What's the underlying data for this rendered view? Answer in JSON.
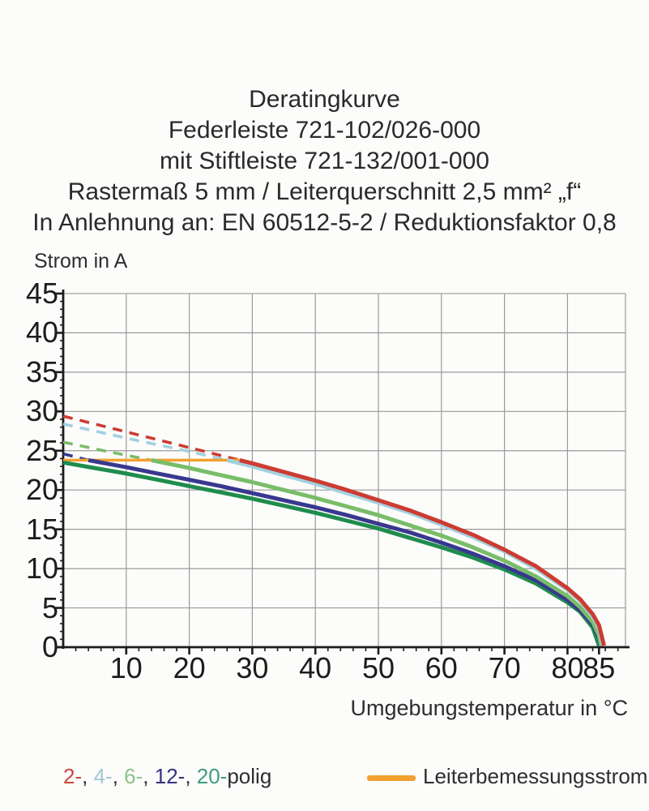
{
  "title": {
    "lines": [
      "Deratingkurve",
      "Federleiste 721-102/026-000",
      "mit Stiftleiste 721-132/001-000",
      "Rastermaß 5 mm / Leiterquerschnitt 2,5 mm² „f“",
      "In Anlehnung an: EN 60512-5-2 / Reduktionsfaktor 0,8"
    ]
  },
  "chart_data": {
    "type": "line",
    "title": "Deratingkurve",
    "xlabel": "Umgebungstemperatur in °C",
    "ylabel": "Strom in A",
    "xlim": [
      0,
      89.2
    ],
    "ylim": [
      0,
      45
    ],
    "grid": true,
    "x_major_ticks": [
      10,
      20,
      30,
      40,
      50,
      60,
      70,
      80,
      85
    ],
    "x_minor_tick_step": 2,
    "x_minor_tick_max": 88,
    "y_major_ticks": [
      0,
      5,
      10,
      15,
      20,
      25,
      30,
      35,
      40,
      45
    ],
    "y_minor_tick_step": 1,
    "x_gridline_step": 10,
    "y_gridline_step": 5,
    "rated_current_line": {
      "name": "Leiterbemessungsstrom",
      "color": "#f2a12f",
      "y": 23.8,
      "x_start": 0,
      "x_end": 28
    },
    "series": [
      {
        "name": "20-polig",
        "color": "#1f8c4d",
        "dashed_points": [],
        "solid_points": [
          [
            0,
            23.5
          ],
          [
            5,
            22.8
          ],
          [
            10,
            22.1
          ],
          [
            15,
            21.3
          ],
          [
            20,
            20.5
          ],
          [
            25,
            19.7
          ],
          [
            30,
            18.9
          ],
          [
            35,
            18.0
          ],
          [
            40,
            17.1
          ],
          [
            45,
            16.1
          ],
          [
            50,
            15.1
          ],
          [
            55,
            13.9
          ],
          [
            60,
            12.7
          ],
          [
            65,
            11.4
          ],
          [
            70,
            9.9
          ],
          [
            75,
            8.1
          ],
          [
            80,
            5.7
          ],
          [
            82,
            4.5
          ],
          [
            84,
            2.5
          ],
          [
            85,
            0.2
          ]
        ]
      },
      {
        "name": "12-polig",
        "color": "#39388f",
        "dashed_points": [
          [
            0,
            24.6
          ],
          [
            4,
            23.8
          ]
        ],
        "solid_points": [
          [
            4,
            23.8
          ],
          [
            10,
            22.9
          ],
          [
            15,
            22.1
          ],
          [
            20,
            21.3
          ],
          [
            25,
            20.5
          ],
          [
            30,
            19.6
          ],
          [
            35,
            18.7
          ],
          [
            40,
            17.8
          ],
          [
            45,
            16.8
          ],
          [
            50,
            15.7
          ],
          [
            55,
            14.6
          ],
          [
            60,
            13.3
          ],
          [
            65,
            11.9
          ],
          [
            70,
            10.3
          ],
          [
            75,
            8.5
          ],
          [
            80,
            6.0
          ],
          [
            82,
            4.7
          ],
          [
            84,
            2.9
          ],
          [
            85,
            1.2
          ],
          [
            85.2,
            0.2
          ]
        ]
      },
      {
        "name": "6-polig",
        "color": "#79bd69",
        "dashed_points": [
          [
            0,
            26.1
          ],
          [
            7,
            24.9
          ],
          [
            14,
            23.8
          ]
        ],
        "solid_points": [
          [
            14,
            23.8
          ],
          [
            20,
            22.8
          ],
          [
            25,
            21.9
          ],
          [
            30,
            21.0
          ],
          [
            35,
            20.0
          ],
          [
            40,
            19.0
          ],
          [
            45,
            17.9
          ],
          [
            50,
            16.8
          ],
          [
            55,
            15.5
          ],
          [
            60,
            14.2
          ],
          [
            65,
            12.7
          ],
          [
            70,
            11.0
          ],
          [
            75,
            9.0
          ],
          [
            80,
            6.5
          ],
          [
            82,
            5.1
          ],
          [
            84,
            3.2
          ],
          [
            85,
            1.5
          ],
          [
            85.3,
            0.2
          ]
        ]
      },
      {
        "name": "4-polig",
        "color": "#a2d0df",
        "dashed_points": [
          [
            0,
            28.4
          ],
          [
            10,
            26.6
          ],
          [
            20,
            24.9
          ],
          [
            26,
            23.8
          ]
        ],
        "solid_points": [
          [
            26,
            23.8
          ],
          [
            30,
            23.0
          ],
          [
            35,
            21.9
          ],
          [
            40,
            20.8
          ],
          [
            45,
            19.6
          ],
          [
            50,
            18.4
          ],
          [
            55,
            17.1
          ],
          [
            60,
            15.6
          ],
          [
            65,
            14.0
          ],
          [
            70,
            12.2
          ],
          [
            75,
            10.0
          ],
          [
            80,
            7.3
          ],
          [
            82,
            5.9
          ],
          [
            84,
            3.9
          ],
          [
            85,
            2.4
          ],
          [
            85.6,
            0.2
          ]
        ]
      },
      {
        "name": "2-polig",
        "color": "#cc3c31",
        "dashed_points": [
          [
            0,
            29.4
          ],
          [
            10,
            27.4
          ],
          [
            20,
            25.4
          ],
          [
            28,
            23.8
          ]
        ],
        "solid_points": [
          [
            28,
            23.8
          ],
          [
            30,
            23.4
          ],
          [
            35,
            22.3
          ],
          [
            40,
            21.2
          ],
          [
            45,
            20.0
          ],
          [
            50,
            18.7
          ],
          [
            55,
            17.4
          ],
          [
            60,
            15.9
          ],
          [
            65,
            14.3
          ],
          [
            70,
            12.4
          ],
          [
            75,
            10.3
          ],
          [
            80,
            7.5
          ],
          [
            82,
            6.1
          ],
          [
            84,
            4.2
          ],
          [
            85,
            2.8
          ],
          [
            85.8,
            0.2
          ]
        ]
      }
    ]
  },
  "axis_titles": {
    "y": "Strom in A",
    "x": "Umgebungstemperatur in °C"
  },
  "legend": {
    "left": {
      "items": [
        {
          "label": "2-",
          "color": "#c8463c"
        },
        {
          "label": "4-",
          "color": "#a3c6d4"
        },
        {
          "label": "6-",
          "color": "#8cc488"
        },
        {
          "label": "12-",
          "color": "#34347f"
        },
        {
          "label": "20-",
          "color": "#3f9b80"
        }
      ],
      "separator": ", ",
      "suffix": "polig",
      "suffix_color": "#2e2e2e"
    },
    "right": {
      "label": "Leiterbemessungsstrom",
      "color": "#f2a12f"
    }
  },
  "style_colors": {
    "grid": "#9a9a9a",
    "axis": "#1c1c1c",
    "text": "#2a2a2a"
  }
}
